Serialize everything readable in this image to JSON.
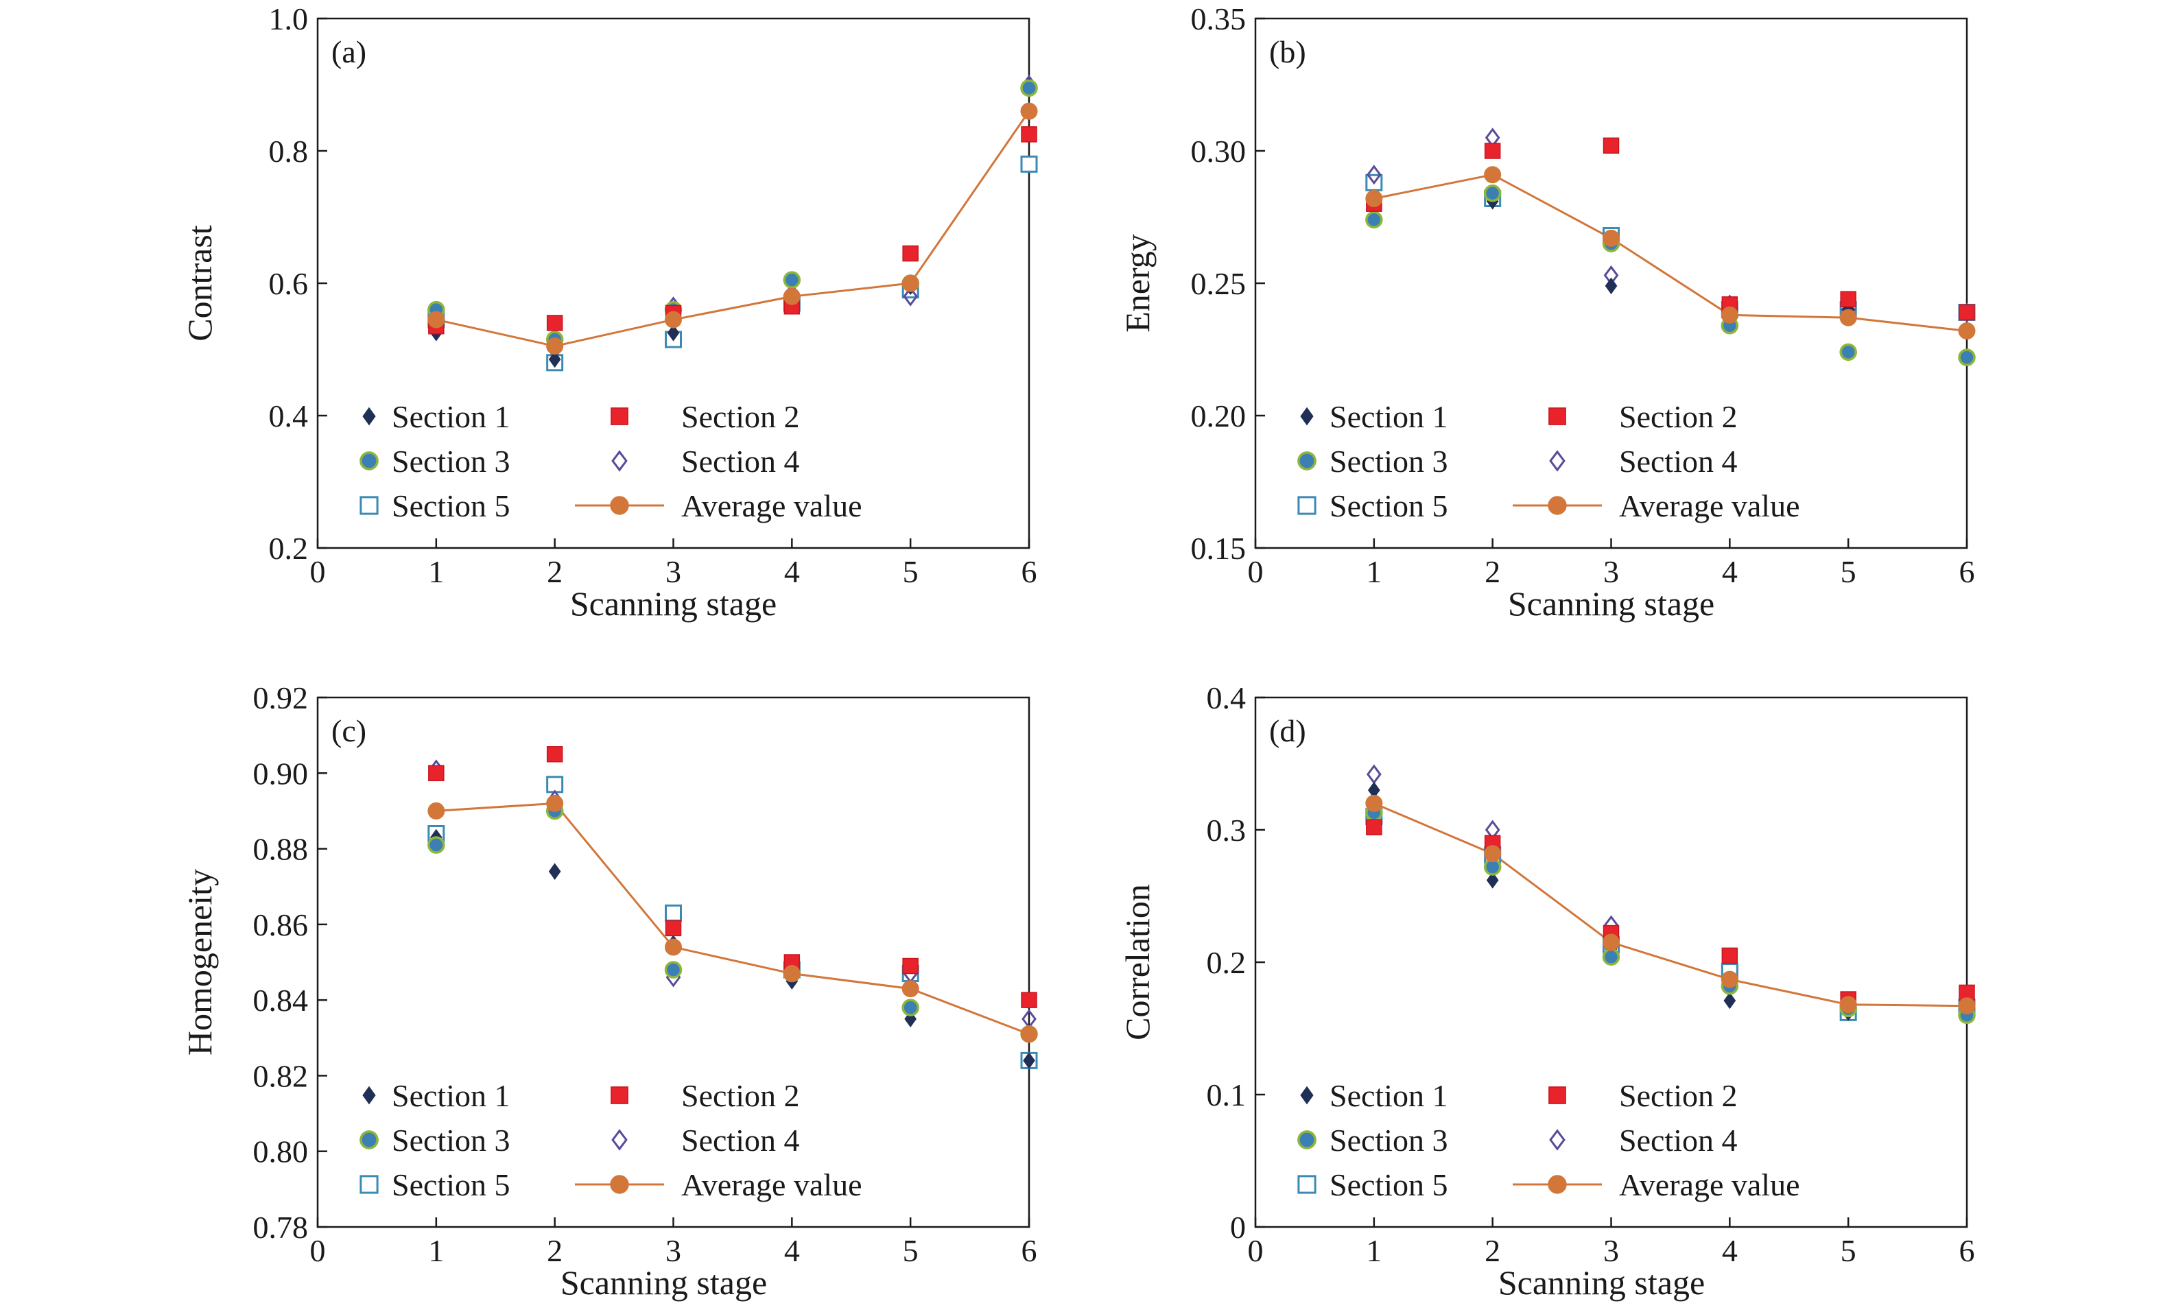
{
  "colors": {
    "section_1": "#1f2f55",
    "section_2": "#e8232b",
    "section_3": "#3c7fb5",
    "section_3_edge": "#8db63a",
    "section_4": "#5a4a9a",
    "section_5": "#3b8ab4",
    "average": "#d2763a",
    "axis": "#1a1a1a"
  },
  "marker_shapes": {
    "section_1": "filled-diamond",
    "section_2": "filled-square",
    "section_3": "filled-circle",
    "section_4": "open-diamond",
    "section_5": "open-square",
    "average": "circle-with-line"
  },
  "legend": [
    {
      "key": "section_1",
      "label": "Section 1"
    },
    {
      "key": "section_2",
      "label": "Section 2"
    },
    {
      "key": "section_3",
      "label": "Section 3"
    },
    {
      "key": "section_4",
      "label": "Section 4"
    },
    {
      "key": "section_5",
      "label": "Section 5"
    },
    {
      "key": "average",
      "label": "Average value"
    }
  ],
  "chart_data": [
    {
      "panel": "(a)",
      "type": "scatter",
      "xlabel": "Scanning stage",
      "ylabel": "Contrast",
      "xlim": [
        0,
        6
      ],
      "xticks": [
        "0",
        "1",
        "2",
        "3",
        "4",
        "5",
        "6"
      ],
      "ylim": [
        0.2,
        1.0
      ],
      "yticks": [
        "0.2",
        "0.4",
        "0.6",
        "0.8",
        "1.0"
      ],
      "x": [
        1,
        2,
        3,
        4,
        5,
        6
      ],
      "series": [
        {
          "key": "section_1",
          "name": "Section 1",
          "values": [
            0.525,
            0.485,
            0.525,
            0.565,
            0.595,
            0.895
          ]
        },
        {
          "key": "section_2",
          "name": "Section 2",
          "values": [
            0.535,
            0.54,
            0.555,
            0.565,
            0.645,
            0.825
          ]
        },
        {
          "key": "section_3",
          "name": "Section 3",
          "values": [
            0.56,
            0.515,
            0.56,
            0.605,
            0.6,
            0.895
          ]
        },
        {
          "key": "section_4",
          "name": "Section 4",
          "values": [
            0.545,
            0.5,
            0.565,
            0.585,
            0.58,
            0.9
          ]
        },
        {
          "key": "section_5",
          "name": "Section 5",
          "values": [
            0.545,
            0.48,
            0.515,
            0.57,
            0.59,
            0.78
          ]
        },
        {
          "key": "average",
          "name": "Average value",
          "values": [
            0.545,
            0.505,
            0.545,
            0.58,
            0.6,
            0.86
          ]
        }
      ]
    },
    {
      "panel": "(b)",
      "type": "scatter",
      "xlabel": "Scanning stage",
      "ylabel": "Energy",
      "xlim": [
        0,
        6
      ],
      "xticks": [
        "0",
        "1",
        "2",
        "3",
        "4",
        "5",
        "6"
      ],
      "ylim": [
        0.15,
        0.35
      ],
      "yticks": [
        "0.15",
        "0.20",
        "0.25",
        "0.30",
        "0.35"
      ],
      "x": [
        1,
        2,
        3,
        4,
        5,
        6
      ],
      "series": [
        {
          "key": "section_1",
          "name": "Section 1",
          "values": [
            0.281,
            0.281,
            0.249,
            0.24,
            0.24,
            0.239
          ]
        },
        {
          "key": "section_2",
          "name": "Section 2",
          "values": [
            0.28,
            0.3,
            0.302,
            0.242,
            0.244,
            0.239
          ]
        },
        {
          "key": "section_3",
          "name": "Section 3",
          "values": [
            0.274,
            0.284,
            0.265,
            0.234,
            0.224,
            0.222
          ]
        },
        {
          "key": "section_4",
          "name": "Section 4",
          "values": [
            0.291,
            0.305,
            0.253,
            0.242,
            0.24,
            0.239
          ]
        },
        {
          "key": "section_5",
          "name": "Section 5",
          "values": [
            0.288,
            0.282,
            0.268,
            0.24,
            0.24,
            0.239
          ]
        },
        {
          "key": "average",
          "name": "Average value",
          "values": [
            0.282,
            0.291,
            0.267,
            0.238,
            0.237,
            0.232
          ]
        }
      ]
    },
    {
      "panel": "(c)",
      "type": "scatter",
      "xlabel": "Scanning stage",
      "ylabel": "Homogeneity",
      "xlim": [
        0,
        6
      ],
      "xticks": [
        "0",
        "1",
        "2",
        "3",
        "4",
        "5",
        "6"
      ],
      "ylim": [
        0.78,
        0.92
      ],
      "yticks": [
        "0.78",
        "0.80",
        "0.82",
        "0.84",
        "0.86",
        "0.88",
        "0.90",
        "0.92"
      ],
      "x": [
        1,
        2,
        3,
        4,
        5,
        6
      ],
      "series": [
        {
          "key": "section_1",
          "name": "Section 1",
          "values": [
            0.883,
            0.874,
            0.855,
            0.845,
            0.835,
            0.824
          ]
        },
        {
          "key": "section_2",
          "name": "Section 2",
          "values": [
            0.9,
            0.905,
            0.859,
            0.85,
            0.849,
            0.84
          ]
        },
        {
          "key": "section_3",
          "name": "Section 3",
          "values": [
            0.881,
            0.89,
            0.848,
            0.847,
            0.838,
            0.831
          ]
        },
        {
          "key": "section_4",
          "name": "Section 4",
          "values": [
            0.901,
            0.893,
            0.846,
            0.846,
            0.847,
            0.835
          ]
        },
        {
          "key": "section_5",
          "name": "Section 5",
          "values": [
            0.884,
            0.897,
            0.863,
            0.848,
            0.847,
            0.824
          ]
        },
        {
          "key": "average",
          "name": "Average value",
          "values": [
            0.89,
            0.892,
            0.854,
            0.847,
            0.843,
            0.831
          ]
        }
      ]
    },
    {
      "panel": "(d)",
      "type": "scatter",
      "xlabel": "Scanning stage",
      "ylabel": "Correlation",
      "xlim": [
        0,
        6
      ],
      "xticks": [
        "0",
        "1",
        "2",
        "3",
        "4",
        "5",
        "6"
      ],
      "ylim": [
        0,
        0.4
      ],
      "yticks": [
        "0",
        "0.1",
        "0.2",
        "0.3",
        "0.4"
      ],
      "x": [
        1,
        2,
        3,
        4,
        5,
        6
      ],
      "series": [
        {
          "key": "section_1",
          "name": "Section 1",
          "values": [
            0.33,
            0.262,
            0.21,
            0.171,
            0.162,
            0.163
          ]
        },
        {
          "key": "section_2",
          "name": "Section 2",
          "values": [
            0.302,
            0.29,
            0.222,
            0.205,
            0.172,
            0.177
          ]
        },
        {
          "key": "section_3",
          "name": "Section 3",
          "values": [
            0.313,
            0.272,
            0.204,
            0.182,
            0.165,
            0.16
          ]
        },
        {
          "key": "section_4",
          "name": "Section 4",
          "values": [
            0.342,
            0.3,
            0.228,
            0.185,
            0.17,
            0.168
          ]
        },
        {
          "key": "section_5",
          "name": "Section 5",
          "values": [
            0.31,
            0.281,
            0.213,
            0.193,
            0.162,
            0.166
          ]
        },
        {
          "key": "average",
          "name": "Average value",
          "values": [
            0.32,
            0.282,
            0.215,
            0.187,
            0.168,
            0.167
          ]
        }
      ]
    }
  ]
}
